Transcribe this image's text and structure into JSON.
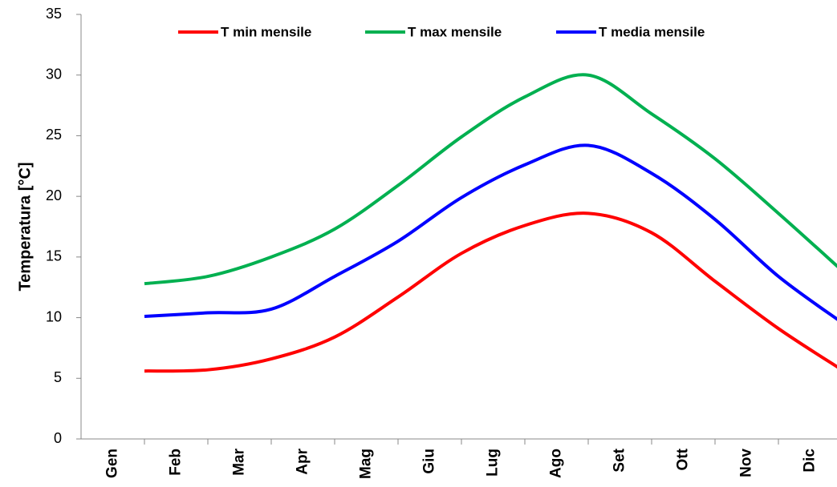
{
  "chart_data": {
    "type": "line",
    "ylabel": "Temperatura [°C]",
    "categories": [
      "Gen",
      "Feb",
      "Mar",
      "Apr",
      "Mag",
      "Giu",
      "Lug",
      "Ago",
      "Set",
      "Ott",
      "Nov",
      "Dic"
    ],
    "series": [
      {
        "name": "T min mensile",
        "color": "#ff0000",
        "values": [
          5.6,
          5.7,
          6.6,
          8.4,
          11.7,
          15.3,
          17.6,
          18.6,
          17.0,
          13.0,
          9.1,
          5.7
        ]
      },
      {
        "name": "T max mensile",
        "color": "#00b050",
        "values": [
          12.8,
          13.4,
          15.0,
          17.3,
          20.9,
          24.9,
          28.2,
          30.0,
          26.8,
          23.1,
          18.6,
          13.9
        ]
      },
      {
        "name": "T media mensile",
        "color": "#0000ff",
        "values": [
          10.1,
          10.4,
          10.7,
          13.4,
          16.3,
          19.9,
          22.6,
          24.2,
          21.9,
          18.1,
          13.4,
          9.6
        ]
      }
    ],
    "ylim": [
      0,
      35
    ],
    "yticks": [
      0,
      5,
      10,
      15,
      20,
      25,
      30,
      35
    ],
    "legend": "top"
  }
}
